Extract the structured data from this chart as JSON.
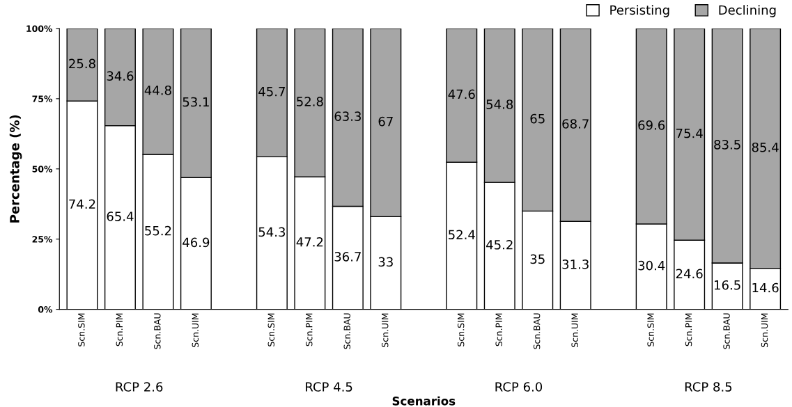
{
  "chart_data": {
    "type": "bar",
    "stacked": true,
    "xlabel": "Scenarios",
    "ylabel": "Percentage (%)",
    "categories": [
      "Scn.SIM",
      "Scn.PIM",
      "Scn.BAU",
      "Scn.UIM",
      null,
      "Scn.SIM",
      "Scn.PIM",
      "Scn.BAU",
      "Scn.UIM",
      null,
      "Scn.SIM",
      "Scn.PIM",
      "Scn.BAU",
      "Scn.UIM",
      null,
      "Scn.SIM",
      "Scn.PIM",
      "Scn.BAU",
      "Scn.UIM"
    ],
    "series": [
      {
        "name": "Persisting",
        "color": "#ffffff",
        "values": [
          74.2,
          65.4,
          55.2,
          46.9,
          null,
          54.3,
          47.2,
          36.7,
          33,
          null,
          52.4,
          45.2,
          35,
          31.3,
          null,
          30.4,
          24.6,
          16.5,
          14.6
        ]
      },
      {
        "name": "Declining",
        "color": "#a6a6a6",
        "values": [
          25.8,
          34.6,
          44.8,
          53.1,
          null,
          45.7,
          52.8,
          63.3,
          67,
          null,
          47.6,
          54.8,
          65,
          68.7,
          null,
          69.6,
          75.4,
          83.5,
          85.4
        ]
      }
    ],
    "ylim": [
      0,
      100
    ],
    "yticks": [
      {
        "value": 0,
        "label": "0%"
      },
      {
        "value": 25,
        "label": "25%"
      },
      {
        "value": 50,
        "label": "50%"
      },
      {
        "value": 75,
        "label": "75%"
      },
      {
        "value": 100,
        "label": "100%"
      }
    ],
    "annotations": [
      "RCP 2.6",
      "RCP 4.5",
      "RCP 6.0",
      "RCP 8.5"
    ],
    "data_labels": true,
    "grid": false,
    "legend": "top right"
  }
}
